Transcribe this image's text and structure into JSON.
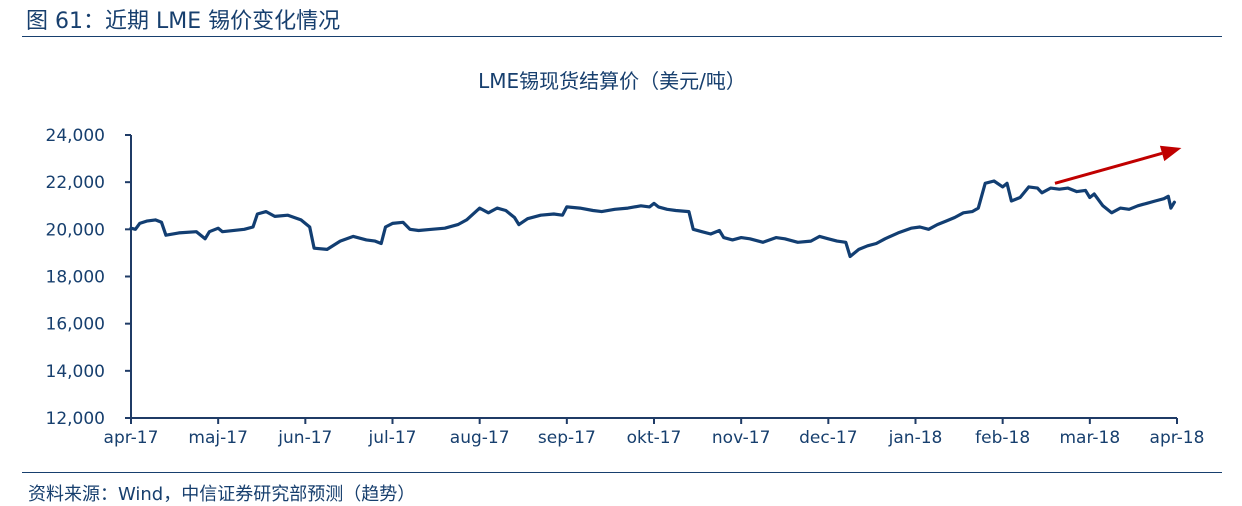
{
  "figure": {
    "label": "图 61：近期 LME 锡价变化情况"
  },
  "source": {
    "text": "资料来源：Wind，中信证券研究部预测（趋势）"
  },
  "chart_data": {
    "type": "line",
    "title": "LME锡现货结算价（美元/吨）",
    "xlabel": "",
    "ylabel": "",
    "ylim": [
      12000,
      24000
    ],
    "yticks": [
      "12,000",
      "14,000",
      "16,000",
      "18,000",
      "20,000",
      "22,000",
      "24,000"
    ],
    "ytick_values": [
      12000,
      14000,
      16000,
      18000,
      20000,
      22000,
      24000
    ],
    "xlim": [
      0,
      12
    ],
    "xtick_labels": [
      "apr-17",
      "maj-17",
      "jun-17",
      "jul-17",
      "aug-17",
      "sep-17",
      "okt-17",
      "nov-17",
      "dec-17",
      "jan-18",
      "feb-18",
      "mar-18",
      "apr-18"
    ],
    "xtick_positions": [
      0,
      1,
      2,
      3,
      4,
      5,
      6,
      7,
      8,
      9,
      10,
      11,
      12
    ],
    "grid": false,
    "legend": "none",
    "series": [
      {
        "points": [
          [
            0.0,
            20050
          ],
          [
            0.05,
            20000
          ],
          [
            0.1,
            20250
          ],
          [
            0.18,
            20350
          ],
          [
            0.28,
            20400
          ],
          [
            0.35,
            20300
          ],
          [
            0.4,
            19750
          ],
          [
            0.55,
            19850
          ],
          [
            0.75,
            19900
          ],
          [
            0.85,
            19600
          ],
          [
            0.9,
            19900
          ],
          [
            1.0,
            20050
          ],
          [
            1.05,
            19900
          ],
          [
            1.3,
            20000
          ],
          [
            1.4,
            20100
          ],
          [
            1.45,
            20650
          ],
          [
            1.55,
            20750
          ],
          [
            1.65,
            20550
          ],
          [
            1.8,
            20600
          ],
          [
            1.95,
            20400
          ],
          [
            2.05,
            20100
          ],
          [
            2.1,
            19200
          ],
          [
            2.25,
            19150
          ],
          [
            2.4,
            19500
          ],
          [
            2.55,
            19700
          ],
          [
            2.7,
            19550
          ],
          [
            2.8,
            19500
          ],
          [
            2.87,
            19400
          ],
          [
            2.92,
            20100
          ],
          [
            3.0,
            20250
          ],
          [
            3.12,
            20300
          ],
          [
            3.2,
            20000
          ],
          [
            3.3,
            19950
          ],
          [
            3.45,
            20000
          ],
          [
            3.6,
            20050
          ],
          [
            3.75,
            20200
          ],
          [
            3.85,
            20400
          ],
          [
            4.0,
            20900
          ],
          [
            4.1,
            20700
          ],
          [
            4.2,
            20900
          ],
          [
            4.3,
            20800
          ],
          [
            4.4,
            20500
          ],
          [
            4.45,
            20200
          ],
          [
            4.55,
            20450
          ],
          [
            4.7,
            20600
          ],
          [
            4.85,
            20650
          ],
          [
            4.95,
            20600
          ],
          [
            5.0,
            20950
          ],
          [
            5.15,
            20900
          ],
          [
            5.3,
            20800
          ],
          [
            5.4,
            20750
          ],
          [
            5.55,
            20850
          ],
          [
            5.7,
            20900
          ],
          [
            5.85,
            21000
          ],
          [
            5.95,
            20950
          ],
          [
            6.0,
            21100
          ],
          [
            6.05,
            20950
          ],
          [
            6.15,
            20850
          ],
          [
            6.25,
            20800
          ],
          [
            6.4,
            20750
          ],
          [
            6.45,
            20000
          ],
          [
            6.55,
            19900
          ],
          [
            6.65,
            19800
          ],
          [
            6.75,
            19950
          ],
          [
            6.8,
            19650
          ],
          [
            6.9,
            19550
          ],
          [
            7.0,
            19650
          ],
          [
            7.1,
            19600
          ],
          [
            7.25,
            19450
          ],
          [
            7.4,
            19650
          ],
          [
            7.5,
            19600
          ],
          [
            7.65,
            19450
          ],
          [
            7.8,
            19500
          ],
          [
            7.9,
            19700
          ],
          [
            8.0,
            19600
          ],
          [
            8.1,
            19500
          ],
          [
            8.2,
            19450
          ],
          [
            8.25,
            18850
          ],
          [
            8.35,
            19150
          ],
          [
            8.45,
            19300
          ],
          [
            8.55,
            19400
          ],
          [
            8.65,
            19600
          ],
          [
            8.8,
            19850
          ],
          [
            8.95,
            20050
          ],
          [
            9.05,
            20100
          ],
          [
            9.15,
            20000
          ],
          [
            9.25,
            20200
          ],
          [
            9.35,
            20350
          ],
          [
            9.45,
            20500
          ],
          [
            9.55,
            20700
          ],
          [
            9.65,
            20750
          ],
          [
            9.72,
            20900
          ],
          [
            9.8,
            21950
          ],
          [
            9.9,
            22050
          ],
          [
            10.0,
            21800
          ],
          [
            10.05,
            21950
          ],
          [
            10.1,
            21200
          ],
          [
            10.2,
            21350
          ],
          [
            10.3,
            21800
          ],
          [
            10.4,
            21750
          ],
          [
            10.45,
            21550
          ],
          [
            10.55,
            21750
          ],
          [
            10.65,
            21700
          ],
          [
            10.75,
            21750
          ],
          [
            10.85,
            21600
          ],
          [
            10.95,
            21650
          ],
          [
            11.0,
            21350
          ],
          [
            11.05,
            21500
          ],
          [
            11.15,
            21000
          ],
          [
            11.25,
            20700
          ],
          [
            11.35,
            20900
          ],
          [
            11.45,
            20850
          ],
          [
            11.55,
            21000
          ],
          [
            11.65,
            21100
          ],
          [
            11.75,
            21200
          ],
          [
            11.85,
            21300
          ],
          [
            11.9,
            21400
          ],
          [
            11.93,
            20900
          ],
          [
            11.97,
            21150
          ]
        ]
      }
    ],
    "trend_arrow": {
      "from": [
        10.6,
        21950
      ],
      "to": [
        12.05,
        23450
      ],
      "color": "#c00000"
    },
    "colors": {
      "line": "#123e72",
      "axis": "#1f3b66",
      "text": "#173f6e"
    }
  }
}
